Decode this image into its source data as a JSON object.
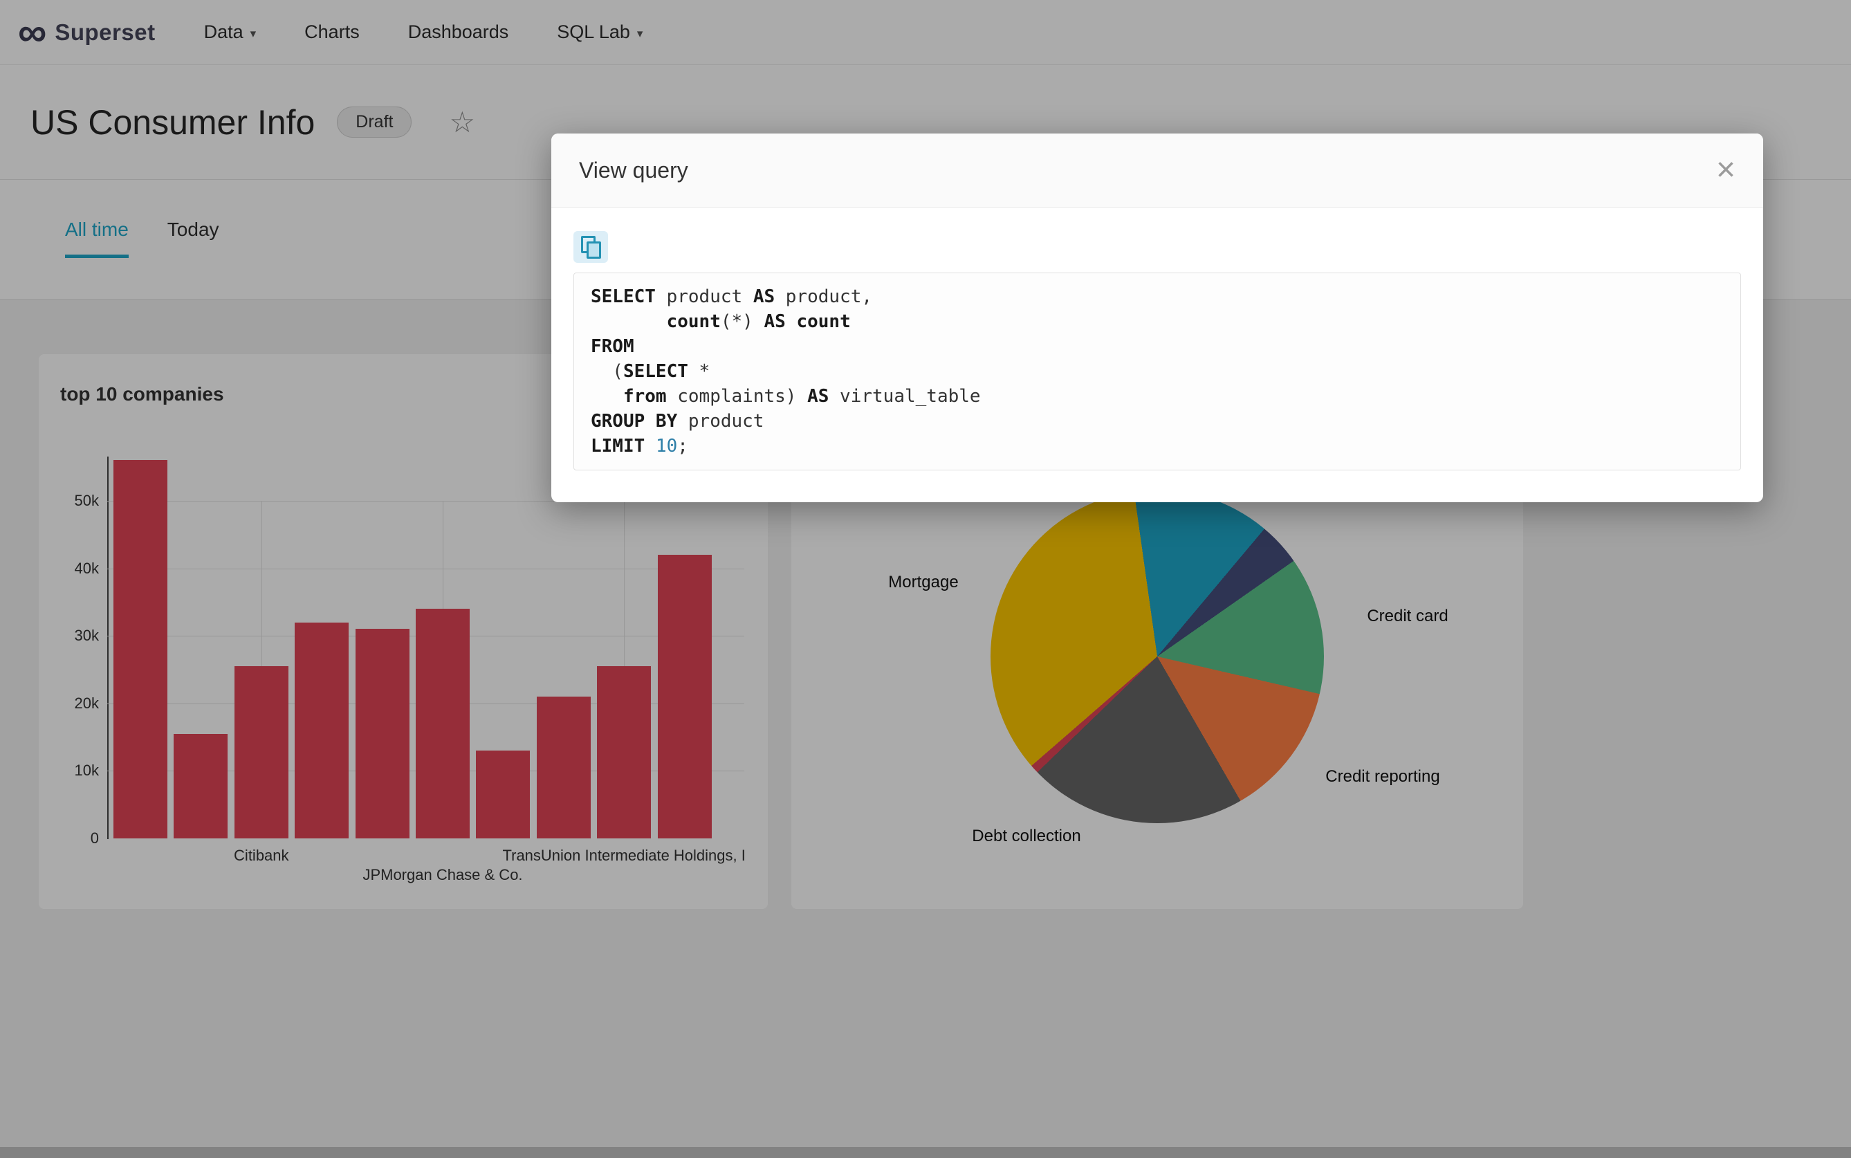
{
  "colors": {
    "accent": "#20a7c9",
    "bar": "#e04355"
  },
  "navbar": {
    "logo_icon": "∞",
    "brand": "Superset",
    "items": [
      {
        "label": "Data",
        "caret": "▾"
      },
      {
        "label": "Charts",
        "caret": ""
      },
      {
        "label": "Dashboards",
        "caret": ""
      },
      {
        "label": "SQL Lab",
        "caret": "▾"
      }
    ]
  },
  "header": {
    "title": "US Consumer Info",
    "badge": "Draft",
    "star_icon": "☆"
  },
  "tabs": [
    {
      "label": "All time",
      "active": true
    },
    {
      "label": "Today",
      "active": false
    }
  ],
  "modal": {
    "title": "View query",
    "close_icon": "×",
    "copy_icon": "copy-to-clipboard",
    "sql_lines": [
      [
        {
          "t": "SELECT",
          "s": "k"
        },
        {
          "t": " product ",
          "s": "p"
        },
        {
          "t": "AS",
          "s": "k"
        },
        {
          "t": " product,",
          "s": "p"
        }
      ],
      [
        {
          "t": "       ",
          "s": "p"
        },
        {
          "t": "count",
          "s": "k"
        },
        {
          "t": "(*) ",
          "s": "p"
        },
        {
          "t": "AS",
          "s": "k"
        },
        {
          "t": " ",
          "s": "p"
        },
        {
          "t": "count",
          "s": "k"
        }
      ],
      [
        {
          "t": "FROM",
          "s": "k"
        }
      ],
      [
        {
          "t": "  (",
          "s": "p"
        },
        {
          "t": "SELECT",
          "s": "k"
        },
        {
          "t": " *",
          "s": "p"
        }
      ],
      [
        {
          "t": "   ",
          "s": "p"
        },
        {
          "t": "from",
          "s": "k"
        },
        {
          "t": " complaints) ",
          "s": "p"
        },
        {
          "t": "AS",
          "s": "k"
        },
        {
          "t": " virtual_table",
          "s": "p"
        }
      ],
      [
        {
          "t": "GROUP BY",
          "s": "k"
        },
        {
          "t": " product",
          "s": "p"
        }
      ],
      [
        {
          "t": "LIMIT",
          "s": "k"
        },
        {
          "t": " ",
          "s": "p"
        },
        {
          "t": "10",
          "s": "n"
        },
        {
          "t": ";",
          "s": "p"
        }
      ]
    ]
  },
  "chart_data": [
    {
      "type": "bar",
      "title": "top 10 companies",
      "categories": [
        "",
        "",
        "Citibank",
        "",
        "",
        "JPMorgan Chase & Co.",
        "",
        "",
        "TransUnion Intermediate Holdings, I",
        ""
      ],
      "values": [
        56000,
        15500,
        25500,
        32000,
        31000,
        34000,
        13000,
        21000,
        25500,
        42000
      ],
      "x_labels": [
        {
          "index": 2,
          "label": "Citibank",
          "row": 0
        },
        {
          "index": 5,
          "label": "JPMorgan Chase & Co.",
          "row": 1
        },
        {
          "index": 8,
          "label": "TransUnion Intermediate Holdings, I",
          "row": 0
        }
      ],
      "y_ticks": [
        "0",
        "10k",
        "20k",
        "30k",
        "40k",
        "50k"
      ],
      "ylim": [
        0,
        57400
      ],
      "bar_color": "#e04355",
      "grid": true,
      "legend": "none"
    },
    {
      "type": "pie",
      "start_deg": -8,
      "slices": [
        {
          "label": "",
          "sweep_deg": 48,
          "color": "#1fa8c9"
        },
        {
          "label": "",
          "sweep_deg": 15,
          "color": "#454e7c"
        },
        {
          "label": "Credit card",
          "sweep_deg": 48,
          "color": "#5ac189"
        },
        {
          "label": "Credit reporting",
          "sweep_deg": 47,
          "color": "#ff7f44"
        },
        {
          "label": "Debt collection",
          "sweep_deg": 76,
          "color": "#666666"
        },
        {
          "label": "",
          "sweep_deg": 3,
          "color": "#e04355"
        },
        {
          "label": "Mortgage",
          "sweep_deg": 123,
          "color": "#fcc700"
        }
      ],
      "legend": "none"
    }
  ]
}
